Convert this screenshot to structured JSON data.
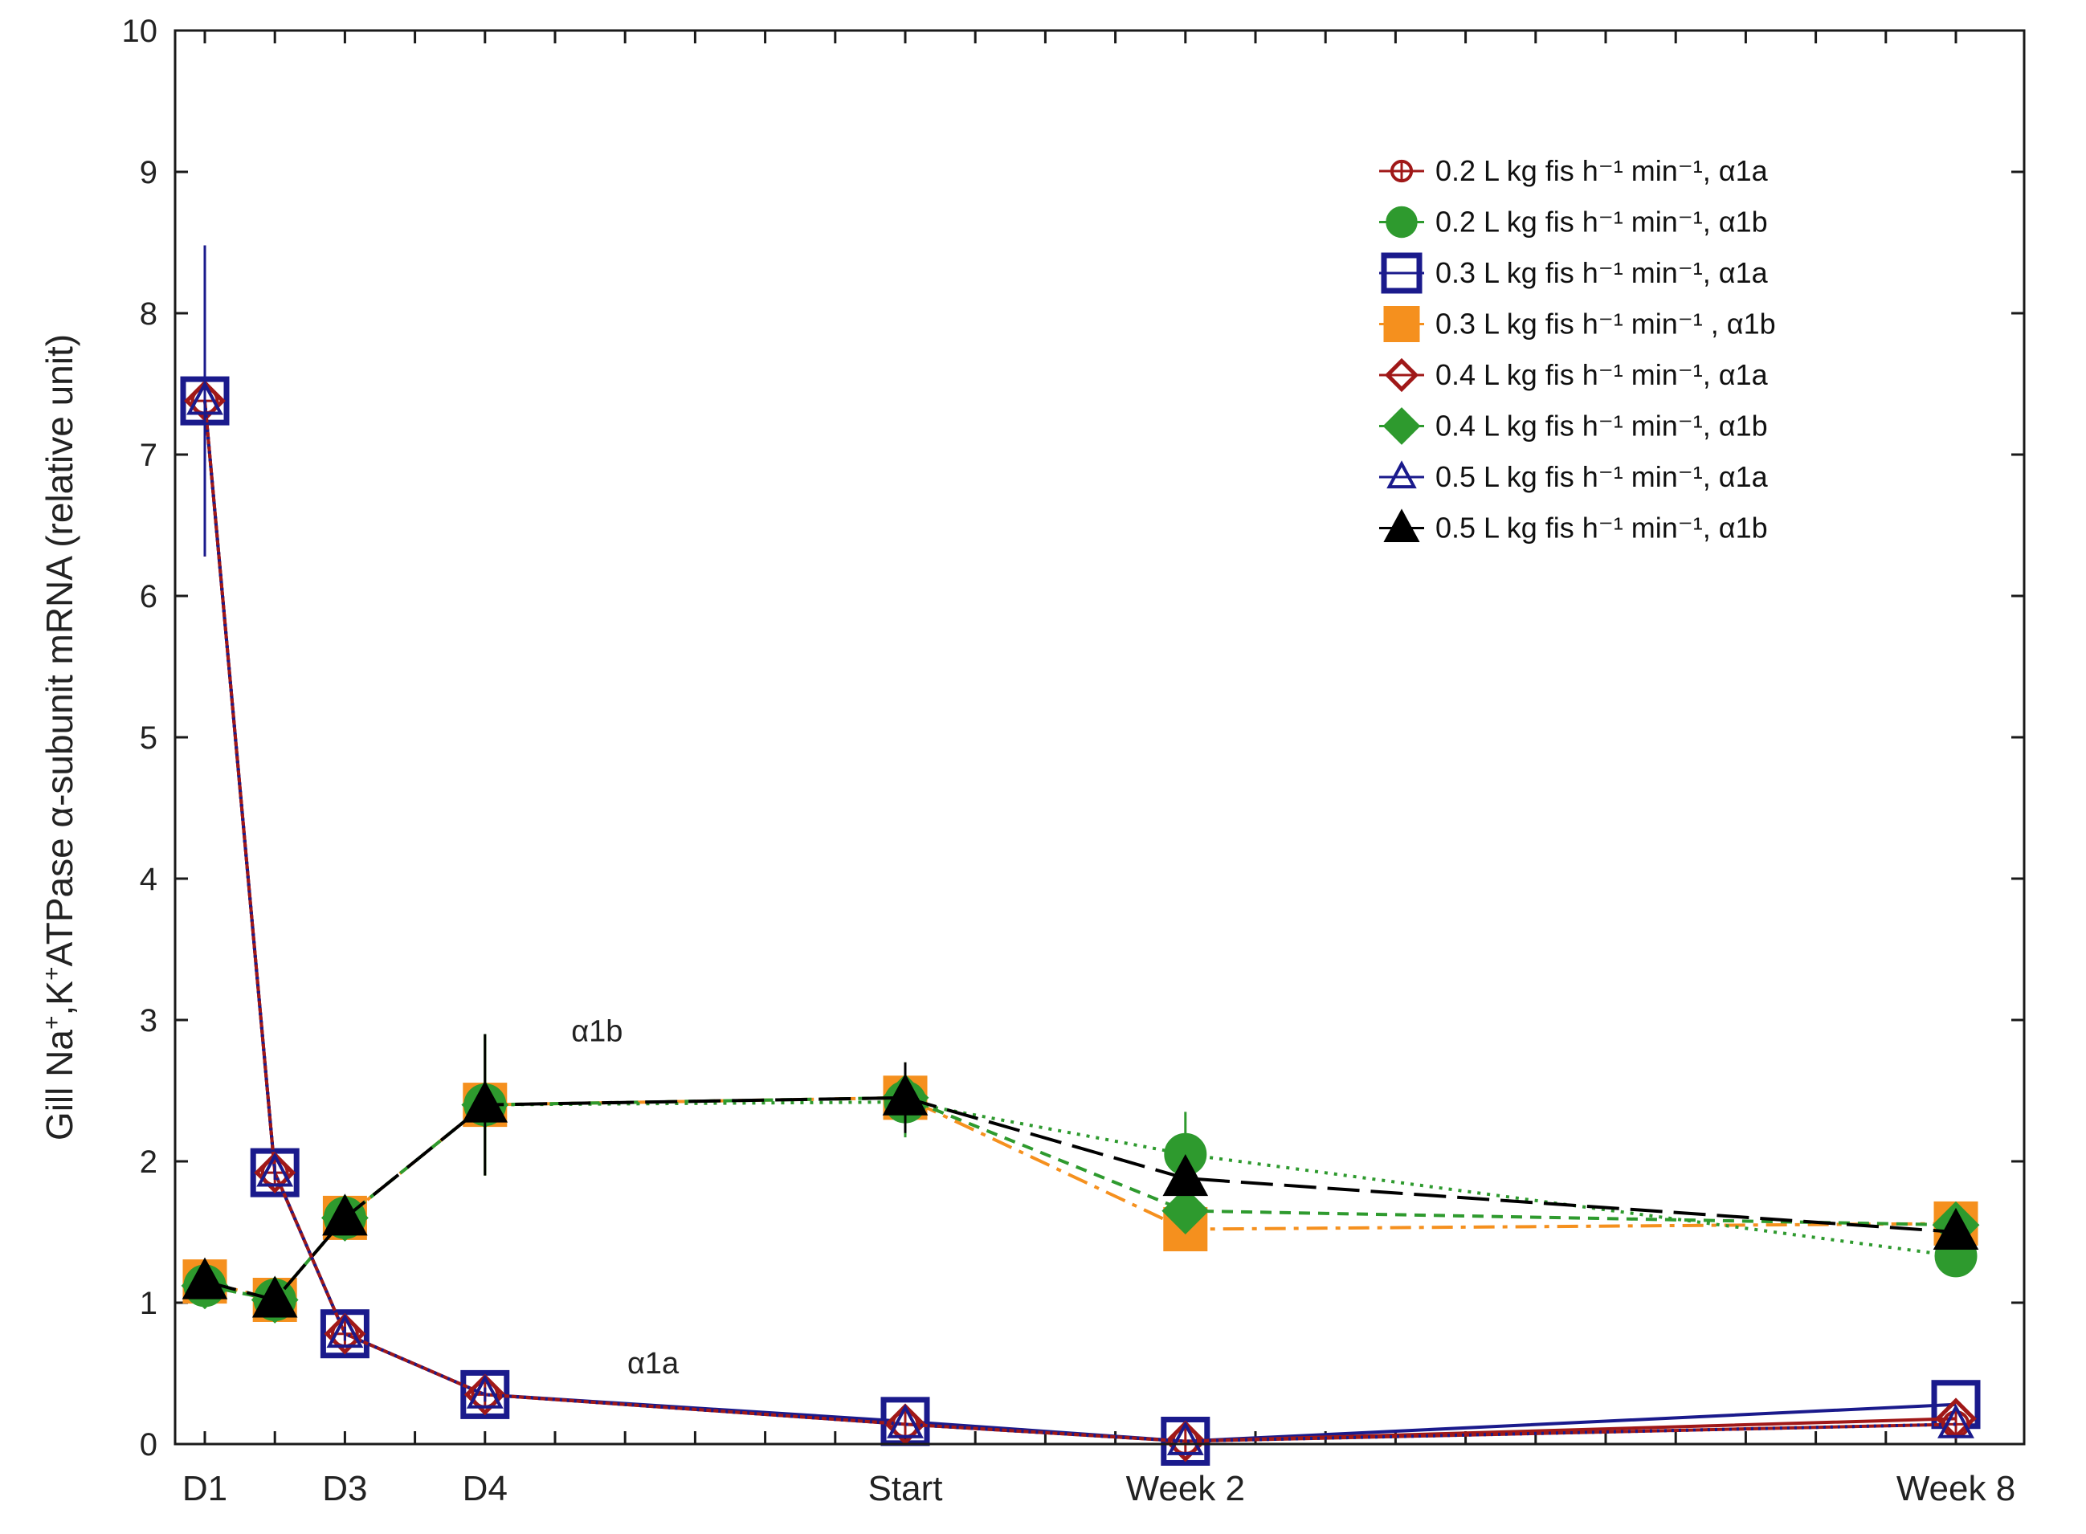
{
  "chart_data": {
    "type": "line",
    "title": "",
    "xlabel": "",
    "ylabel": {
      "prefix": "Gill Na",
      "sup1": "+",
      "mid": ",K",
      "sup2": "+",
      "suffix": "ATPase α-subunit mRNA (relative unit)"
    },
    "ylim": [
      0,
      10
    ],
    "yticks": [
      0,
      1,
      2,
      3,
      4,
      5,
      6,
      7,
      8,
      9,
      10
    ],
    "xlim": [
      0,
      26
    ],
    "x_ticks_labeled": [
      {
        "x": 1,
        "label": "D1"
      },
      {
        "x": 3,
        "label": "D3"
      },
      {
        "x": 5,
        "label": "D4"
      },
      {
        "x": 11,
        "label": "Start"
      },
      {
        "x": 15,
        "label": "Week 2"
      },
      {
        "x": 26,
        "label": "Week 8"
      }
    ],
    "x_ticks_minor": [
      2,
      4,
      6,
      7,
      8,
      9,
      10,
      12,
      13,
      14,
      16,
      17,
      18,
      19,
      20,
      21,
      22,
      23,
      24,
      25
    ],
    "x": [
      1,
      2,
      3,
      5,
      11,
      15,
      26
    ],
    "annotations": [
      {
        "text": "α1b",
        "x": 6.6,
        "y": 2.85
      },
      {
        "text": "α1a",
        "x": 7.4,
        "y": 0.5
      }
    ],
    "legend_position": "top-right",
    "series": [
      {
        "name": "0.2 L kg fis h⁻¹ min⁻¹, α1a",
        "color": "#a01818",
        "marker": "circle-open-cross",
        "dash": "",
        "values": [
          7.38,
          1.92,
          0.78,
          0.35,
          0.14,
          0.02,
          0.14
        ],
        "err": [
          1.1,
          0.05,
          0.05,
          0.05,
          0.03,
          0.03,
          0.03
        ]
      },
      {
        "name": "0.2 L kg fis h⁻¹ min⁻¹, α1b",
        "color": "#2e9a2e",
        "marker": "circle-filled",
        "dash": "4,8",
        "values": [
          1.12,
          1.02,
          1.6,
          2.4,
          2.42,
          2.05,
          1.33
        ],
        "err": [
          0.08,
          0.05,
          0.05,
          0.5,
          0.25,
          0.3,
          0.05
        ]
      },
      {
        "name": "0.3 L kg fis h⁻¹ min⁻¹, α1a",
        "color": "#1a1a8c",
        "marker": "square-open",
        "dash": "",
        "values": [
          7.38,
          1.92,
          0.78,
          0.35,
          0.16,
          0.02,
          0.28
        ],
        "err": [
          1.1,
          0.05,
          0.05,
          0.05,
          0.03,
          0.03,
          0.03
        ]
      },
      {
        "name": "0.3 L kg fis h⁻¹ min⁻¹ , α1b",
        "color": "#f5901e",
        "marker": "square-filled",
        "dash": "26,10,6,10",
        "values": [
          1.15,
          1.02,
          1.6,
          2.4,
          2.45,
          1.52,
          1.56
        ],
        "err": [
          0.08,
          0.05,
          0.05,
          0.5,
          0.25,
          0.05,
          0.05
        ]
      },
      {
        "name": "0.4 L kg fis h⁻¹ min⁻¹, α1a",
        "color": "#a01818",
        "marker": "diamond-open",
        "dash": "",
        "values": [
          7.38,
          1.92,
          0.78,
          0.35,
          0.14,
          0.02,
          0.18
        ],
        "err": [
          1.1,
          0.05,
          0.05,
          0.05,
          0.03,
          0.03,
          0.03
        ]
      },
      {
        "name": "0.4 L kg fis h⁻¹ min⁻¹, α1b",
        "color": "#2e9a2e",
        "marker": "diamond-filled",
        "dash": "14,10",
        "values": [
          1.12,
          1.02,
          1.6,
          2.4,
          2.45,
          1.65,
          1.55
        ],
        "err": [
          0.08,
          0.05,
          0.05,
          0.5,
          0.25,
          0.05,
          0.05
        ]
      },
      {
        "name": "0.5 L kg fis h⁻¹ min⁻¹, α1a",
        "color": "#1a1a8c",
        "marker": "triangle-open",
        "dash": "3,6",
        "values": [
          7.38,
          1.92,
          0.78,
          0.35,
          0.14,
          0.02,
          0.14
        ],
        "err": [
          1.1,
          0.05,
          0.05,
          0.05,
          0.03,
          0.03,
          0.03
        ]
      },
      {
        "name": "0.5 L kg fis h⁻¹ min⁻¹, α1b",
        "color": "#000000",
        "marker": "triangle-filled",
        "dash": "40,14",
        "values": [
          1.15,
          1.02,
          1.6,
          2.4,
          2.45,
          1.88,
          1.5
        ],
        "err": [
          0.1,
          0.05,
          0.05,
          0.5,
          0.25,
          0.1,
          0.05
        ]
      }
    ]
  }
}
